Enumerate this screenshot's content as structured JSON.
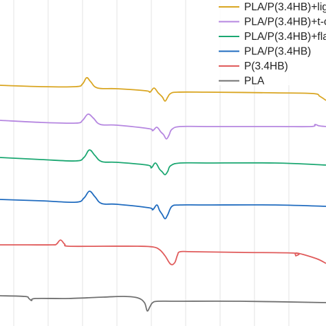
{
  "chart_data": {
    "type": "line",
    "title": "",
    "xlabel": "",
    "ylabel": "",
    "x_grid_lines": [
      20,
      70,
      120,
      170,
      220,
      270,
      320,
      370,
      420
    ],
    "xlim": [
      0,
      474
    ],
    "grid": true,
    "legend_position": "top-right",
    "series": [
      {
        "name": "PLA/P(3.4HB)+lig",
        "color": "#d9a520",
        "x": [
          0,
          60,
          110,
          120,
          126,
          132,
          142,
          170,
          212,
          218,
          224,
          230,
          236,
          240,
          244,
          248,
          258,
          300,
          400,
          455,
          465,
          474
        ],
        "y": [
          124,
          126,
          126,
          122,
          113,
          119,
          128,
          129,
          132,
          134,
          128,
          135,
          141,
          147,
          141,
          136,
          134,
          134,
          135,
          136,
          140,
          146
        ]
      },
      {
        "name": "PLA/P(3.4HB)+t-c",
        "color": "#b586e0",
        "x": [
          0,
          60,
          110,
          120,
          128,
          136,
          146,
          170,
          216,
          222,
          228,
          234,
          238,
          242,
          246,
          250,
          262,
          300,
          400,
          452,
          458,
          464,
          474
        ],
        "y": [
          175,
          178,
          179,
          175,
          166,
          172,
          181,
          182,
          187,
          190,
          185,
          192,
          196,
          202,
          196,
          188,
          184,
          184,
          184,
          184,
          181,
          183,
          184
        ]
      },
      {
        "name": "PLA/P(3.4HB)+fla",
        "color": "#1aa771",
        "x": [
          0,
          60,
          110,
          122,
          130,
          138,
          148,
          170,
          214,
          220,
          226,
          232,
          236,
          240,
          244,
          248,
          262,
          300,
          400,
          474
        ],
        "y": [
          229,
          232,
          234,
          229,
          218,
          226,
          235,
          236,
          240,
          244,
          237,
          246,
          250,
          254,
          249,
          241,
          237,
          237,
          237,
          240
        ]
      },
      {
        "name": "PLA/P(3.4HB)",
        "color": "#1f6bbf",
        "x": [
          0,
          60,
          110,
          122,
          130,
          138,
          148,
          170,
          216,
          222,
          228,
          232,
          236,
          240,
          244,
          250,
          262,
          300,
          400,
          474
        ],
        "y": [
          290,
          292,
          294,
          288,
          278,
          286,
          296,
          297,
          302,
          305,
          298,
          306,
          312,
          318,
          312,
          300,
          298,
          298,
          298,
          300
        ]
      },
      {
        "name": "P(3.4HB)",
        "color": "#e05a5a",
        "x": [
          0,
          40,
          76,
          82,
          88,
          94,
          100,
          150,
          200,
          222,
          232,
          240,
          248,
          254,
          258,
          262,
          280,
          350,
          428,
          430,
          432,
          460,
          474
        ],
        "y": [
          356,
          356,
          356,
          355,
          349,
          355,
          358,
          358,
          358,
          359,
          363,
          372,
          384,
          382,
          371,
          366,
          366,
          367,
          368,
          372,
          368,
          376,
          383
        ]
      },
      {
        "name": "PLA",
        "color": "#707070",
        "x": [
          0,
          36,
          42,
          46,
          52,
          100,
          150,
          180,
          200,
          210,
          214,
          218,
          222,
          230,
          260,
          350,
          474
        ],
        "y": [
          430,
          431,
          434,
          437,
          434,
          434,
          432,
          431,
          433,
          440,
          452,
          446,
          440,
          438,
          438,
          438,
          440
        ]
      }
    ]
  }
}
